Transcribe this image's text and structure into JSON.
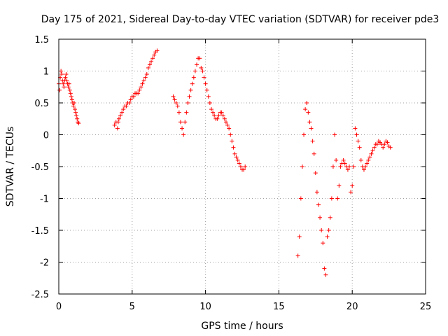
{
  "chart_data": {
    "type": "scatter",
    "title": "Day 175 of 2021, Sidereal Day-to-day VTEC variation (SDTVAR) for receiver pde3",
    "xlabel": "GPS time / hours",
    "ylabel": "SDTVAR / TECUs",
    "xlim": [
      0,
      25
    ],
    "ylim": [
      -2.5,
      1.5
    ],
    "xticks": [
      0,
      5,
      10,
      15,
      20,
      25
    ],
    "yticks": [
      -2.5,
      -2,
      -1.5,
      -1,
      -0.5,
      0,
      0.5,
      1,
      1.5
    ],
    "xtick_labels": [
      "0",
      "5",
      "10",
      "15",
      "20",
      "25"
    ],
    "ytick_labels": [
      "-2.5",
      "-2",
      "-1.5",
      "-1",
      "-0.5",
      "0",
      "0.5",
      "1",
      "1.5"
    ],
    "grid": true,
    "marker": "+",
    "marker_color": "#ff0000",
    "series": [
      {
        "name": "SDTVAR",
        "x": [
          0.0,
          0.05,
          0.1,
          0.15,
          0.2,
          0.25,
          0.3,
          0.35,
          0.4,
          0.45,
          0.5,
          0.55,
          0.6,
          0.65,
          0.7,
          0.75,
          0.8,
          0.85,
          0.9,
          0.95,
          1.0,
          1.05,
          1.1,
          1.15,
          1.2,
          1.25,
          1.3,
          1.35,
          3.8,
          3.9,
          4.0,
          4.05,
          4.1,
          4.2,
          4.3,
          4.4,
          4.5,
          4.6,
          4.7,
          4.8,
          4.9,
          5.0,
          5.1,
          5.2,
          5.3,
          5.4,
          5.5,
          5.6,
          5.7,
          5.8,
          5.9,
          6.0,
          6.1,
          6.2,
          6.3,
          6.4,
          6.5,
          6.6,
          6.7,
          7.8,
          7.9,
          8.0,
          8.1,
          8.2,
          8.3,
          8.4,
          8.5,
          8.6,
          8.7,
          8.8,
          8.9,
          9.0,
          9.1,
          9.2,
          9.3,
          9.4,
          9.5,
          9.6,
          9.7,
          9.8,
          9.9,
          10.0,
          10.1,
          10.2,
          10.3,
          10.4,
          10.5,
          10.6,
          10.7,
          10.8,
          10.9,
          11.0,
          11.1,
          11.2,
          11.3,
          11.4,
          11.5,
          11.6,
          11.7,
          11.8,
          11.9,
          12.0,
          12.1,
          12.2,
          12.3,
          12.4,
          12.5,
          12.6,
          12.7,
          16.3,
          16.4,
          16.5,
          16.6,
          16.7,
          16.8,
          16.9,
          17.0,
          17.1,
          17.2,
          17.3,
          17.4,
          17.5,
          17.6,
          17.7,
          17.8,
          17.9,
          18.0,
          18.1,
          18.2,
          18.3,
          18.4,
          18.5,
          18.6,
          18.7,
          18.8,
          18.9,
          19.0,
          19.1,
          19.2,
          19.3,
          19.4,
          19.5,
          19.6,
          19.7,
          19.8,
          19.9,
          20.0,
          20.1,
          20.2,
          20.3,
          20.4,
          20.5,
          20.6,
          20.7,
          20.8,
          20.9,
          21.0,
          21.1,
          21.2,
          21.3,
          21.4,
          21.5,
          21.6,
          21.7,
          21.8,
          21.9,
          22.0,
          22.1,
          22.2,
          22.3,
          22.4,
          22.5,
          22.6
        ],
        "y": [
          0.8,
          0.7,
          0.9,
          1.0,
          0.95,
          0.85,
          0.8,
          0.75,
          0.85,
          0.9,
          0.95,
          0.85,
          0.8,
          0.75,
          0.8,
          0.7,
          0.65,
          0.6,
          0.55,
          0.5,
          0.45,
          0.5,
          0.4,
          0.35,
          0.3,
          0.25,
          0.2,
          0.18,
          0.15,
          0.2,
          0.1,
          0.2,
          0.25,
          0.3,
          0.35,
          0.4,
          0.45,
          0.45,
          0.5,
          0.5,
          0.55,
          0.6,
          0.6,
          0.65,
          0.65,
          0.65,
          0.7,
          0.75,
          0.8,
          0.85,
          0.9,
          0.95,
          1.05,
          1.1,
          1.15,
          1.2,
          1.25,
          1.3,
          1.32,
          0.6,
          0.55,
          0.5,
          0.45,
          0.35,
          0.2,
          0.1,
          0.0,
          0.2,
          0.35,
          0.5,
          0.6,
          0.7,
          0.8,
          0.9,
          1.0,
          1.1,
          1.2,
          1.2,
          1.05,
          1.0,
          0.9,
          0.8,
          0.7,
          0.6,
          0.5,
          0.4,
          0.35,
          0.3,
          0.25,
          0.25,
          0.3,
          0.35,
          0.35,
          0.3,
          0.25,
          0.2,
          0.15,
          0.1,
          0.0,
          -0.1,
          -0.2,
          -0.3,
          -0.35,
          -0.4,
          -0.45,
          -0.5,
          -0.55,
          -0.55,
          -0.5,
          -1.9,
          -1.6,
          -1.0,
          -0.5,
          0.0,
          0.4,
          0.5,
          0.35,
          0.2,
          0.1,
          -0.1,
          -0.3,
          -0.6,
          -0.9,
          -1.1,
          -1.3,
          -1.5,
          -1.7,
          -2.1,
          -2.2,
          -1.6,
          -1.5,
          -1.3,
          -1.0,
          -0.5,
          0.0,
          -0.4,
          -1.0,
          -0.8,
          -0.5,
          -0.45,
          -0.4,
          -0.45,
          -0.5,
          -0.55,
          -0.5,
          -0.9,
          -0.8,
          -0.5,
          0.1,
          0.0,
          -0.1,
          -0.2,
          -0.4,
          -0.5,
          -0.55,
          -0.5,
          -0.45,
          -0.4,
          -0.35,
          -0.3,
          -0.25,
          -0.2,
          -0.15,
          -0.15,
          -0.1,
          -0.12,
          -0.15,
          -0.2,
          -0.15,
          -0.1,
          -0.12,
          -0.18,
          -0.2
        ]
      }
    ]
  }
}
